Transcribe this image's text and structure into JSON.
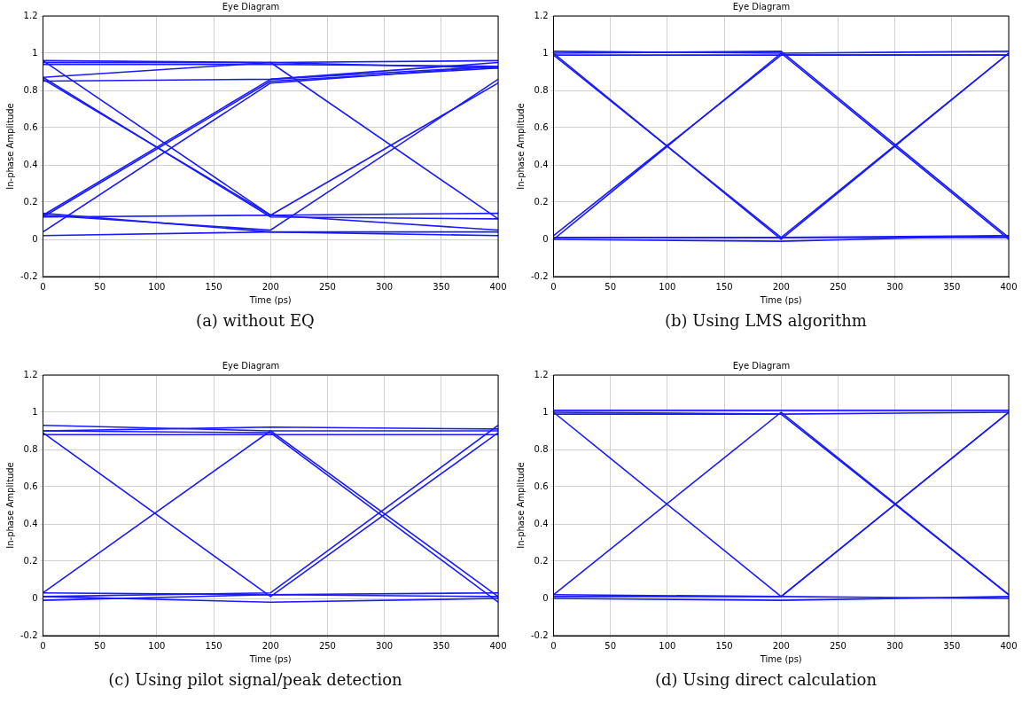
{
  "chart_data": [
    {
      "type": "line",
      "title": "Eye Diagram",
      "xlabel": "Time (ps)",
      "ylabel": "In-phase Amplitude",
      "x": [
        0,
        200,
        400
      ],
      "xlim": [
        0,
        400
      ],
      "xticks": [
        0,
        50,
        100,
        150,
        200,
        250,
        300,
        350,
        400
      ],
      "ylim": [
        -0.2,
        1.2
      ],
      "yticks": [
        -0.2,
        0,
        0.2,
        0.4,
        0.6,
        0.8,
        1,
        1.2
      ],
      "grid": true,
      "legend": false,
      "marker": "none",
      "line_style": "solid",
      "annotations": [
        "(a) without EQ"
      ],
      "series": [
        {
          "color": "#1a1aff",
          "values": [
            0.96,
            0.95,
            0.96
          ]
        },
        {
          "color": "#1a1aff",
          "values": [
            0.94,
            0.94,
            0.93
          ]
        },
        {
          "color": "#1a1aff",
          "values": [
            0.87,
            0.95,
            0.92
          ]
        },
        {
          "color": "#1a1aff",
          "values": [
            0.85,
            0.86,
            0.93
          ]
        },
        {
          "color": "#1a1aff",
          "values": [
            0.96,
            0.13,
            0.14
          ]
        },
        {
          "color": "#1a1aff",
          "values": [
            0.87,
            0.12,
            0.11
          ]
        },
        {
          "color": "#1a1aff",
          "values": [
            0.13,
            0.86,
            0.95
          ]
        },
        {
          "color": "#1a1aff",
          "values": [
            0.12,
            0.85,
            0.92
          ]
        },
        {
          "color": "#1a1aff",
          "values": [
            0.04,
            0.84,
            0.93
          ]
        },
        {
          "color": "#1a1aff",
          "values": [
            0.02,
            0.04,
            0.04
          ]
        },
        {
          "color": "#1a1aff",
          "values": [
            0.14,
            0.04,
            0.02
          ]
        },
        {
          "color": "#1a1aff",
          "values": [
            0.12,
            0.13,
            0.05
          ]
        },
        {
          "color": "#1a1aff",
          "values": [
            0.13,
            0.05,
            0.86
          ]
        },
        {
          "color": "#1a1aff",
          "values": [
            0.86,
            0.13,
            0.84
          ]
        },
        {
          "color": "#1a1aff",
          "values": [
            0.95,
            0.95,
            0.11
          ]
        }
      ]
    },
    {
      "type": "line",
      "title": "Eye Diagram",
      "xlabel": "Time (ps)",
      "ylabel": "In-phase Amplitude",
      "x": [
        0,
        200,
        400
      ],
      "xlim": [
        0,
        400
      ],
      "xticks": [
        0,
        50,
        100,
        150,
        200,
        250,
        300,
        350,
        400
      ],
      "ylim": [
        -0.2,
        1.2
      ],
      "yticks": [
        -0.2,
        0,
        0.2,
        0.4,
        0.6,
        0.8,
        1,
        1.2
      ],
      "grid": true,
      "legend": false,
      "marker": "none",
      "line_style": "solid",
      "annotations": [
        "(b) Using LMS algorithm"
      ],
      "series": [
        {
          "color": "#1a1aff",
          "values": [
            1.01,
            1.0,
            1.01
          ]
        },
        {
          "color": "#1a1aff",
          "values": [
            0.99,
            0.99,
            0.99
          ]
        },
        {
          "color": "#1a1aff",
          "values": [
            0.01,
            0.01,
            0.01
          ]
        },
        {
          "color": "#1a1aff",
          "values": [
            0.0,
            -0.01,
            0.02
          ]
        },
        {
          "color": "#1a1aff",
          "values": [
            1.0,
            0.0,
            1.0
          ]
        },
        {
          "color": "#1a1aff",
          "values": [
            0.0,
            1.0,
            0.0
          ]
        },
        {
          "color": "#1a1aff",
          "values": [
            1.0,
            1.01,
            0.01
          ]
        },
        {
          "color": "#1a1aff",
          "values": [
            0.01,
            0.01,
            1.0
          ]
        },
        {
          "color": "#1a1aff",
          "values": [
            0.99,
            0.01,
            0.02
          ]
        },
        {
          "color": "#1a1aff",
          "values": [
            0.02,
            0.99,
            0.99
          ]
        }
      ]
    },
    {
      "type": "line",
      "title": "Eye Diagram",
      "xlabel": "Time (ps)",
      "ylabel": "In-phase Amplitude",
      "x": [
        0,
        200,
        400
      ],
      "xlim": [
        0,
        400
      ],
      "xticks": [
        0,
        50,
        100,
        150,
        200,
        250,
        300,
        350,
        400
      ],
      "ylim": [
        -0.2,
        1.2
      ],
      "yticks": [
        -0.2,
        0,
        0.2,
        0.4,
        0.6,
        0.8,
        1,
        1.2
      ],
      "grid": true,
      "legend": false,
      "marker": "none",
      "line_style": "solid",
      "annotations": [
        "(c) Using pilot signal/peak detection"
      ],
      "series": [
        {
          "color": "#1a1aff",
          "values": [
            0.93,
            0.9,
            0.9
          ]
        },
        {
          "color": "#1a1aff",
          "values": [
            0.88,
            0.88,
            0.88
          ]
        },
        {
          "color": "#1a1aff",
          "values": [
            0.9,
            0.92,
            0.91
          ]
        },
        {
          "color": "#1a1aff",
          "values": [
            0.03,
            0.02,
            0.03
          ]
        },
        {
          "color": "#1a1aff",
          "values": [
            -0.01,
            0.02,
            0.01
          ]
        },
        {
          "color": "#1a1aff",
          "values": [
            0.01,
            -0.02,
            0.0
          ]
        },
        {
          "color": "#1a1aff",
          "values": [
            0.89,
            0.01,
            0.89
          ]
        },
        {
          "color": "#1a1aff",
          "values": [
            0.03,
            0.9,
            0.01
          ]
        },
        {
          "color": "#1a1aff",
          "values": [
            0.9,
            0.89,
            -0.02
          ]
        },
        {
          "color": "#1a1aff",
          "values": [
            0.01,
            0.03,
            0.93
          ]
        }
      ]
    },
    {
      "type": "line",
      "title": "Eye Diagram",
      "xlabel": "Time (ps)",
      "ylabel": "In-phase Amplitude",
      "x": [
        0,
        200,
        400
      ],
      "xlim": [
        0,
        400
      ],
      "xticks": [
        0,
        50,
        100,
        150,
        200,
        250,
        300,
        350,
        400
      ],
      "ylim": [
        -0.2,
        1.2
      ],
      "yticks": [
        -0.2,
        0,
        0.2,
        0.4,
        0.6,
        0.8,
        1,
        1.2
      ],
      "grid": true,
      "legend": false,
      "marker": "none",
      "line_style": "solid",
      "annotations": [
        "(d) Using direct calculation"
      ],
      "series": [
        {
          "color": "#1a1aff",
          "values": [
            1.01,
            1.01,
            1.01
          ]
        },
        {
          "color": "#1a1aff",
          "values": [
            0.99,
            0.99,
            1.0
          ]
        },
        {
          "color": "#1a1aff",
          "values": [
            0.02,
            0.01,
            0.0
          ]
        },
        {
          "color": "#1a1aff",
          "values": [
            0.0,
            -0.01,
            0.01
          ]
        },
        {
          "color": "#1a1aff",
          "values": [
            1.0,
            0.01,
            1.0
          ]
        },
        {
          "color": "#1a1aff",
          "values": [
            0.02,
            1.0,
            0.02
          ]
        },
        {
          "color": "#1a1aff",
          "values": [
            1.0,
            0.99,
            0.02
          ]
        },
        {
          "color": "#1a1aff",
          "values": [
            0.01,
            0.01,
            1.0
          ]
        }
      ]
    }
  ]
}
